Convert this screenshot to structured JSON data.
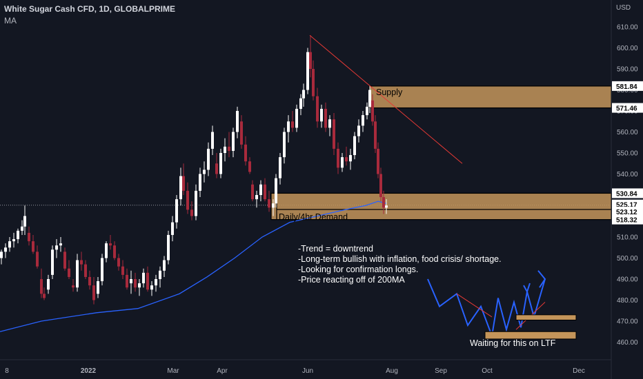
{
  "header": {
    "title": "White Sugar Cash CFD, 1D, GLOBALPRIME",
    "indicator": "MA"
  },
  "colors": {
    "background": "#131722",
    "up_candle": "#ffffff",
    "down_candle": "#a82a3c",
    "ma_line": "#2962ff",
    "zone_fill": "#c4955a",
    "trend_line": "#e53935",
    "projection_line": "#2962ff"
  },
  "chart_data": {
    "type": "candlestick",
    "title": "White Sugar Cash CFD, 1D, GLOBALPRIME",
    "currency": "USD",
    "x_ticks": [
      "8",
      "2022",
      "Mar",
      "Apr",
      "Jun",
      "Aug",
      "Sep",
      "Oct",
      "Dec"
    ],
    "y_ticks": [
      460,
      470,
      480,
      490,
      500,
      510,
      520,
      530,
      540,
      550,
      560,
      570,
      580,
      590,
      600,
      610
    ],
    "ylim": [
      454,
      624
    ],
    "price_labels": [
      "581.84",
      "571.46",
      "530.84",
      "525.17",
      "523.12",
      "518.32"
    ],
    "current_price": 525.17,
    "series": [
      {
        "name": "MA",
        "type": "line",
        "points": [
          [
            0,
            465
          ],
          [
            60,
            470
          ],
          [
            140,
            474
          ],
          [
            200,
            476
          ],
          [
            260,
            483
          ],
          [
            300,
            491
          ],
          [
            340,
            500
          ],
          [
            380,
            510
          ],
          [
            420,
            517
          ],
          [
            460,
            520
          ],
          [
            500,
            523
          ],
          [
            530,
            525
          ],
          [
            548,
            527
          ],
          [
            560,
            526
          ]
        ]
      },
      {
        "name": "Price",
        "type": "candles",
        "ohlc_estimate": [
          [
            2,
            500,
            504,
            497,
            503
          ],
          [
            8,
            503,
            507,
            500,
            505
          ],
          [
            14,
            505,
            510,
            503,
            508
          ],
          [
            20,
            508,
            512,
            505,
            509
          ],
          [
            26,
            509,
            514,
            507,
            513
          ],
          [
            32,
            513,
            518,
            511,
            515
          ],
          [
            36,
            515,
            525,
            511,
            520
          ],
          [
            42,
            512,
            515,
            506,
            508
          ],
          [
            48,
            508,
            511,
            502,
            503
          ],
          [
            54,
            503,
            506,
            495,
            496
          ],
          [
            60,
            490,
            495,
            481,
            483
          ],
          [
            64,
            483,
            486,
            480,
            481
          ],
          [
            70,
            485,
            492,
            483,
            490
          ],
          [
            76,
            492,
            506,
            490,
            504
          ],
          [
            82,
            504,
            509,
            500,
            506
          ],
          [
            88,
            506,
            510,
            503,
            507
          ],
          [
            94,
            503,
            505,
            494,
            495
          ],
          [
            100,
            495,
            499,
            490,
            491
          ],
          [
            106,
            487,
            490,
            484,
            486
          ],
          [
            112,
            486,
            502,
            484,
            499
          ],
          [
            118,
            499,
            503,
            494,
            497
          ],
          [
            124,
            497,
            499,
            490,
            491
          ],
          [
            130,
            491,
            494,
            485,
            487
          ],
          [
            136,
            487,
            491,
            478,
            480
          ],
          [
            142,
            483,
            491,
            481,
            489
          ],
          [
            148,
            489,
            502,
            487,
            500
          ],
          [
            154,
            500,
            508,
            498,
            507
          ],
          [
            160,
            507,
            511,
            504,
            506
          ],
          [
            166,
            506,
            508,
            499,
            500
          ],
          [
            172,
            500,
            502,
            494,
            496
          ],
          [
            178,
            496,
            499,
            490,
            492
          ],
          [
            184,
            492,
            495,
            485,
            486
          ],
          [
            190,
            488,
            494,
            483,
            490
          ],
          [
            196,
            490,
            493,
            484,
            486
          ],
          [
            202,
            486,
            490,
            482,
            488
          ],
          [
            208,
            488,
            495,
            486,
            493
          ],
          [
            214,
            493,
            496,
            484,
            485
          ],
          [
            220,
            485,
            489,
            482,
            487
          ],
          [
            226,
            487,
            492,
            484,
            490
          ],
          [
            232,
            490,
            496,
            486,
            494
          ],
          [
            238,
            494,
            501,
            491,
            499
          ],
          [
            244,
            499,
            513,
            497,
            511
          ],
          [
            250,
            511,
            520,
            508,
            517
          ],
          [
            256,
            517,
            530,
            514,
            528
          ],
          [
            262,
            528,
            543,
            525,
            539
          ],
          [
            266,
            539,
            545,
            530,
            532
          ],
          [
            272,
            532,
            536,
            521,
            523
          ],
          [
            278,
            523,
            527,
            518,
            520
          ],
          [
            284,
            520,
            535,
            518,
            532
          ],
          [
            290,
            532,
            543,
            529,
            540
          ],
          [
            296,
            540,
            546,
            536,
            542
          ],
          [
            302,
            542,
            555,
            539,
            552
          ],
          [
            308,
            552,
            563,
            549,
            560
          ],
          [
            314,
            545,
            550,
            538,
            540
          ],
          [
            320,
            540,
            552,
            538,
            550
          ],
          [
            326,
            550,
            557,
            546,
            553
          ],
          [
            332,
            553,
            560,
            548,
            551
          ],
          [
            338,
            551,
            562,
            548,
            560
          ],
          [
            344,
            560,
            572,
            557,
            570
          ],
          [
            350,
            565,
            568,
            552,
            554
          ],
          [
            356,
            554,
            558,
            544,
            546
          ],
          [
            362,
            546,
            548,
            540,
            541
          ],
          [
            366,
            535,
            537,
            527,
            528
          ],
          [
            372,
            528,
            532,
            524,
            530
          ],
          [
            378,
            530,
            537,
            527,
            535
          ],
          [
            384,
            535,
            538,
            527,
            528
          ],
          [
            390,
            528,
            532,
            522,
            524
          ],
          [
            396,
            524,
            528,
            520,
            526
          ],
          [
            400,
            526,
            540,
            524,
            538
          ],
          [
            406,
            538,
            550,
            535,
            548
          ],
          [
            412,
            548,
            562,
            545,
            560
          ],
          [
            418,
            560,
            568,
            555,
            565
          ],
          [
            424,
            565,
            570,
            560,
            562
          ],
          [
            430,
            562,
            573,
            560,
            571
          ],
          [
            436,
            571,
            578,
            568,
            576
          ],
          [
            440,
            576,
            583,
            572,
            580
          ],
          [
            446,
            580,
            600,
            578,
            598
          ],
          [
            450,
            598,
            606,
            586,
            590
          ],
          [
            454,
            590,
            594,
            575,
            577
          ],
          [
            460,
            577,
            581,
            562,
            565
          ],
          [
            466,
            565,
            573,
            562,
            571
          ],
          [
            472,
            571,
            574,
            560,
            562
          ],
          [
            478,
            562,
            568,
            558,
            566
          ],
          [
            484,
            566,
            569,
            549,
            552
          ],
          [
            490,
            552,
            555,
            540,
            543
          ],
          [
            496,
            543,
            550,
            541,
            548
          ],
          [
            502,
            548,
            553,
            544,
            546
          ],
          [
            508,
            546,
            552,
            542,
            549
          ],
          [
            514,
            549,
            560,
            547,
            558
          ],
          [
            520,
            558,
            566,
            555,
            563
          ],
          [
            526,
            563,
            570,
            560,
            568
          ],
          [
            532,
            568,
            574,
            566,
            572
          ],
          [
            536,
            572,
            582,
            569,
            580
          ],
          [
            540,
            575,
            578,
            563,
            565
          ],
          [
            544,
            565,
            568,
            550,
            552
          ],
          [
            548,
            552,
            555,
            538,
            540
          ],
          [
            552,
            540,
            543,
            527,
            529
          ],
          [
            556,
            529,
            532,
            521,
            524
          ],
          [
            560,
            524,
            528,
            521,
            525
          ]
        ]
      }
    ],
    "zones": [
      {
        "label": "Supply",
        "top": 581.84,
        "bottom": 571.46
      },
      {
        "label": "Daily/4hr Demand",
        "top": 530.84,
        "bottom": 518.32
      }
    ],
    "annotations": [
      "-Trend = downtrend",
      "-Long-term bullish with inflation, food crisis/ shortage.",
      "-Looking for confirmation longs.",
      "-Price reacting off of 200MA",
      "Waiting for this on LTF"
    ]
  },
  "axis": {
    "currency_label": "USD"
  }
}
